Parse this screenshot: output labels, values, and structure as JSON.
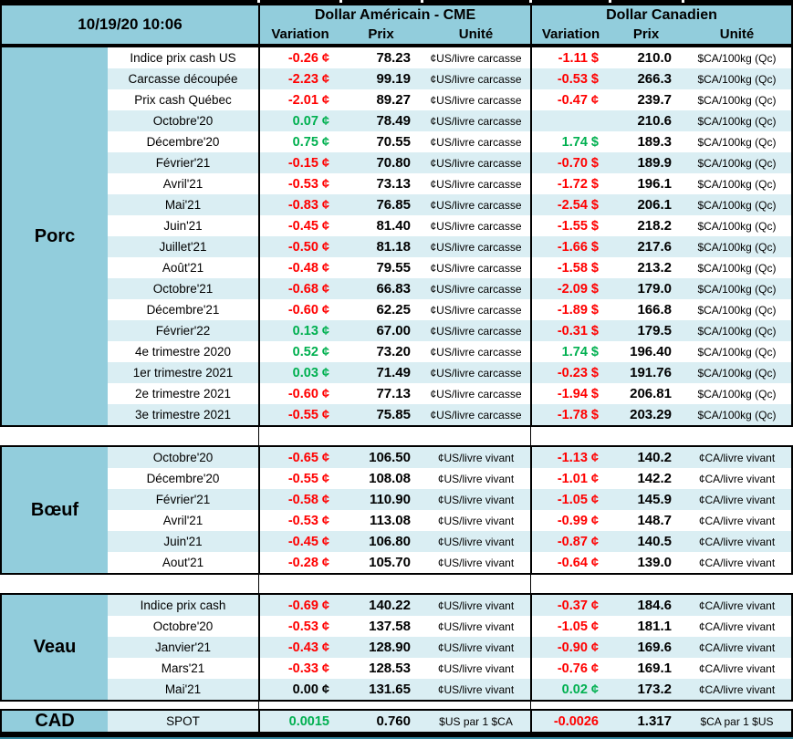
{
  "header": {
    "timestamp": "10/19/20 10:06",
    "us_title": "Dollar Américain - CME",
    "ca_title": "Dollar Canadien",
    "col_variation": "Variation",
    "col_prix": "Prix",
    "col_unite": "Unité"
  },
  "colors": {
    "accent": "#92CDDC",
    "row_alt": "#DAEEF3",
    "negative": "#FF0000",
    "positive": "#00B050",
    "bottom_strip": "#31849B"
  },
  "sections": [
    {
      "label": "Porc",
      "zebra_first_row_shaded": false,
      "rows": [
        {
          "name": "Indice prix cash US",
          "us_var": "-0.26 ¢",
          "us_prix": "78.23",
          "us_unit": "¢US/livre carcasse",
          "ca_var": "-1.11 $",
          "ca_prix": "210.0",
          "ca_unit": "$CA/100kg (Qc)"
        },
        {
          "name": "Carcasse découpée",
          "us_var": "-2.23 ¢",
          "us_prix": "99.19",
          "us_unit": "¢US/livre carcasse",
          "ca_var": "-0.53 $",
          "ca_prix": "266.3",
          "ca_unit": "$CA/100kg (Qc)"
        },
        {
          "name": "Prix cash Québec",
          "us_var": "-2.01 ¢",
          "us_prix": "89.27",
          "us_unit": "¢US/livre carcasse",
          "ca_var": "-0.47 ¢",
          "ca_prix": "239.7",
          "ca_unit": "$CA/100kg (Qc)"
        },
        {
          "name": "Octobre'20",
          "us_var": "0.07 ¢",
          "us_prix": "78.49",
          "us_unit": "¢US/livre carcasse",
          "ca_var": "",
          "ca_prix": "210.6",
          "ca_unit": "$CA/100kg (Qc)"
        },
        {
          "name": "Décembre'20",
          "us_var": "0.75 ¢",
          "us_prix": "70.55",
          "us_unit": "¢US/livre carcasse",
          "ca_var": "1.74 $",
          "ca_prix": "189.3",
          "ca_unit": "$CA/100kg (Qc)"
        },
        {
          "name": "Février'21",
          "us_var": "-0.15 ¢",
          "us_prix": "70.80",
          "us_unit": "¢US/livre carcasse",
          "ca_var": "-0.70 $",
          "ca_prix": "189.9",
          "ca_unit": "$CA/100kg (Qc)"
        },
        {
          "name": "Avril'21",
          "us_var": "-0.53 ¢",
          "us_prix": "73.13",
          "us_unit": "¢US/livre carcasse",
          "ca_var": "-1.72 $",
          "ca_prix": "196.1",
          "ca_unit": "$CA/100kg (Qc)"
        },
        {
          "name": "Mai'21",
          "us_var": "-0.83 ¢",
          "us_prix": "76.85",
          "us_unit": "¢US/livre carcasse",
          "ca_var": "-2.54 $",
          "ca_prix": "206.1",
          "ca_unit": "$CA/100kg (Qc)"
        },
        {
          "name": "Juin'21",
          "us_var": "-0.45 ¢",
          "us_prix": "81.40",
          "us_unit": "¢US/livre carcasse",
          "ca_var": "-1.55 $",
          "ca_prix": "218.2",
          "ca_unit": "$CA/100kg (Qc)"
        },
        {
          "name": "Juillet'21",
          "us_var": "-0.50 ¢",
          "us_prix": "81.18",
          "us_unit": "¢US/livre carcasse",
          "ca_var": "-1.66 $",
          "ca_prix": "217.6",
          "ca_unit": "$CA/100kg (Qc)"
        },
        {
          "name": "Août'21",
          "us_var": "-0.48 ¢",
          "us_prix": "79.55",
          "us_unit": "¢US/livre carcasse",
          "ca_var": "-1.58 $",
          "ca_prix": "213.2",
          "ca_unit": "$CA/100kg (Qc)"
        },
        {
          "name": "Octobre'21",
          "us_var": "-0.68 ¢",
          "us_prix": "66.83",
          "us_unit": "¢US/livre carcasse",
          "ca_var": "-2.09 $",
          "ca_prix": "179.0",
          "ca_unit": "$CA/100kg (Qc)"
        },
        {
          "name": "Décembre'21",
          "us_var": "-0.60 ¢",
          "us_prix": "62.25",
          "us_unit": "¢US/livre carcasse",
          "ca_var": "-1.89 $",
          "ca_prix": "166.8",
          "ca_unit": "$CA/100kg (Qc)"
        },
        {
          "name": "Février'22",
          "us_var": "0.13 ¢",
          "us_prix": "67.00",
          "us_unit": "¢US/livre carcasse",
          "ca_var": "-0.31 $",
          "ca_prix": "179.5",
          "ca_unit": "$CA/100kg (Qc)"
        },
        {
          "name": "4e trimestre 2020",
          "us_var": "0.52 ¢",
          "us_prix": "73.20",
          "us_unit": "¢US/livre carcasse",
          "ca_var": "1.74 $",
          "ca_prix": "196.40",
          "ca_unit": "$CA/100kg (Qc)"
        },
        {
          "name": "1er trimestre 2021",
          "us_var": "0.03 ¢",
          "us_prix": "71.49",
          "us_unit": "¢US/livre carcasse",
          "ca_var": "-0.23 $",
          "ca_prix": "191.76",
          "ca_unit": "$CA/100kg (Qc)"
        },
        {
          "name": "2e trimestre 2021",
          "us_var": "-0.60 ¢",
          "us_prix": "77.13",
          "us_unit": "¢US/livre carcasse",
          "ca_var": "-1.94 $",
          "ca_prix": "206.81",
          "ca_unit": "$CA/100kg (Qc)"
        },
        {
          "name": "3e trimestre 2021",
          "us_var": "-0.55 ¢",
          "us_prix": "75.85",
          "us_unit": "¢US/livre carcasse",
          "ca_var": "-1.78 $",
          "ca_prix": "203.29",
          "ca_unit": "$CA/100kg (Qc)"
        }
      ]
    },
    {
      "label": "Bœuf",
      "zebra_first_row_shaded": true,
      "rows": [
        {
          "name": "Octobre'20",
          "us_var": "-0.65 ¢",
          "us_prix": "106.50",
          "us_unit": "¢US/livre vivant",
          "ca_var": "-1.13 ¢",
          "ca_prix": "140.2",
          "ca_unit": "¢CA/livre vivant"
        },
        {
          "name": "Décembre'20",
          "us_var": "-0.55 ¢",
          "us_prix": "108.08",
          "us_unit": "¢US/livre vivant",
          "ca_var": "-1.01 ¢",
          "ca_prix": "142.2",
          "ca_unit": "¢CA/livre vivant"
        },
        {
          "name": "Février'21",
          "us_var": "-0.58 ¢",
          "us_prix": "110.90",
          "us_unit": "¢US/livre vivant",
          "ca_var": "-1.05 ¢",
          "ca_prix": "145.9",
          "ca_unit": "¢CA/livre vivant"
        },
        {
          "name": "Avril'21",
          "us_var": "-0.53 ¢",
          "us_prix": "113.08",
          "us_unit": "¢US/livre vivant",
          "ca_var": "-0.99 ¢",
          "ca_prix": "148.7",
          "ca_unit": "¢CA/livre vivant"
        },
        {
          "name": "Juin'21",
          "us_var": "-0.45 ¢",
          "us_prix": "106.80",
          "us_unit": "¢US/livre vivant",
          "ca_var": "-0.87 ¢",
          "ca_prix": "140.5",
          "ca_unit": "¢CA/livre vivant"
        },
        {
          "name": "Aout'21",
          "us_var": "-0.28 ¢",
          "us_prix": "105.70",
          "us_unit": "¢US/livre vivant",
          "ca_var": "-0.64 ¢",
          "ca_prix": "139.0",
          "ca_unit": "¢CA/livre vivant"
        }
      ]
    },
    {
      "label": "Veau",
      "zebra_first_row_shaded": true,
      "rows": [
        {
          "name": "Indice prix cash",
          "us_var": "-0.69 ¢",
          "us_prix": "140.22",
          "us_unit": "¢US/livre vivant",
          "ca_var": "-0.37 ¢",
          "ca_prix": "184.6",
          "ca_unit": "¢CA/livre vivant"
        },
        {
          "name": "Octobre'20",
          "us_var": "-0.53 ¢",
          "us_prix": "137.58",
          "us_unit": "¢US/livre vivant",
          "ca_var": "-1.05 ¢",
          "ca_prix": "181.1",
          "ca_unit": "¢CA/livre vivant"
        },
        {
          "name": "Janvier'21",
          "us_var": "-0.43 ¢",
          "us_prix": "128.90",
          "us_unit": "¢US/livre vivant",
          "ca_var": "-0.90 ¢",
          "ca_prix": "169.6",
          "ca_unit": "¢CA/livre vivant"
        },
        {
          "name": "Mars'21",
          "us_var": "-0.33 ¢",
          "us_prix": "128.53",
          "us_unit": "¢US/livre vivant",
          "ca_var": "-0.76 ¢",
          "ca_prix": "169.1",
          "ca_unit": "¢CA/livre vivant"
        },
        {
          "name": "Mai'21",
          "us_var": "0.00 ¢",
          "us_prix": "131.65",
          "us_unit": "¢US/livre vivant",
          "ca_var": "0.02 ¢",
          "ca_prix": "173.2",
          "ca_unit": "¢CA/livre vivant"
        }
      ]
    },
    {
      "label": "CAD",
      "zebra_first_row_shaded": true,
      "rows": [
        {
          "name": "SPOT",
          "us_var": "0.0015",
          "us_prix": "0.760",
          "us_unit": "$US par 1 $CA",
          "ca_var": "-0.0026",
          "ca_prix": "1.317",
          "ca_unit": "$CA par 1 $US"
        }
      ]
    }
  ]
}
